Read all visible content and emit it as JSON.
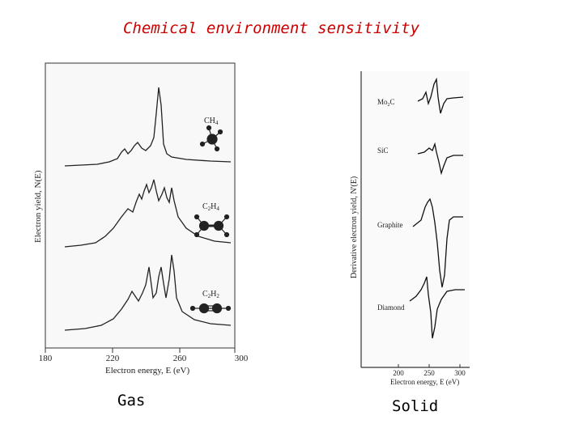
{
  "title": "Chemical environment sensitivity",
  "left_panel": {
    "caption": "Gas",
    "ylabel": "Electron yield, N(E)",
    "xlabel": "Electron energy, E (eV)",
    "xticks": [
      "180",
      "220",
      "260",
      "300"
    ],
    "curves": [
      {
        "molecule_label": "CH4",
        "molecule_label_main": "CH",
        "molecule_label_sub": "4"
      },
      {
        "molecule_label": "C2H4",
        "molecule_label_main_1": "C",
        "molecule_label_sub_1": "2",
        "molecule_label_main_2": "H",
        "molecule_label_sub_2": "4"
      },
      {
        "molecule_label": "C2H2",
        "molecule_label_main_1": "C",
        "molecule_label_sub_1": "2",
        "molecule_label_main_2": "H",
        "molecule_label_sub_2": "2"
      }
    ]
  },
  "right_panel": {
    "caption": "Solid",
    "ylabel": "Derivative electron yield, N'(E)",
    "xlabel": "Electron energy, E (eV)",
    "xticks": [
      "200",
      "250",
      "300"
    ],
    "curves": [
      {
        "label_main": "Mo",
        "label_sub": "2",
        "label_tail": "C"
      },
      {
        "label": "SiC"
      },
      {
        "label": "Graphite"
      },
      {
        "label": "Diamond"
      }
    ]
  }
}
